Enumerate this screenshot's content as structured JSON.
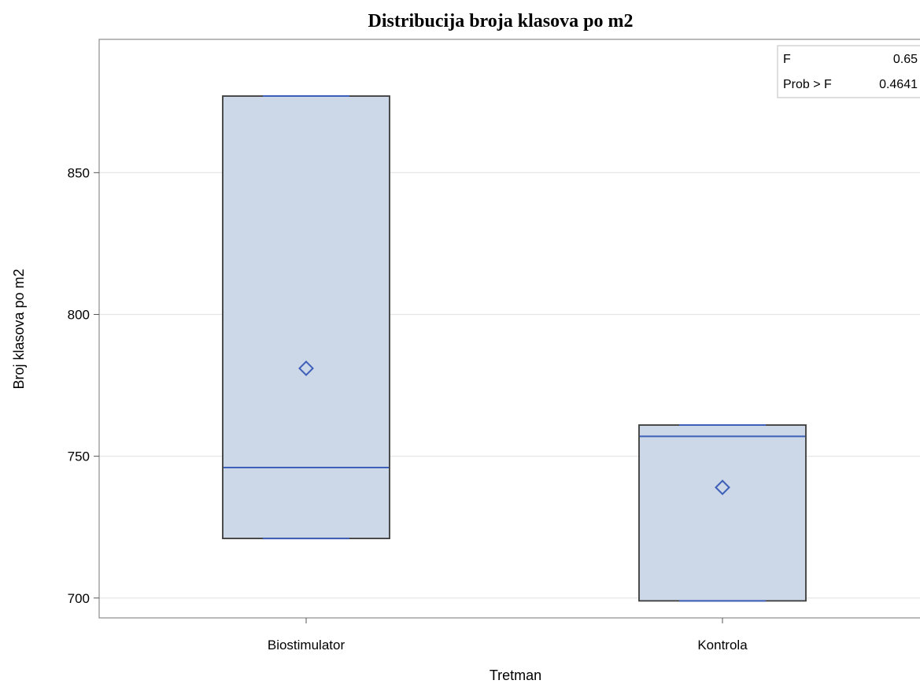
{
  "chart_data": {
    "type": "box",
    "title": "Distribucija broja  klasova po m2",
    "xlabel": "Tretman",
    "ylabel": "Broj klasova po m2",
    "ylim": [
      693,
      897
    ],
    "yticks": [
      700,
      750,
      800,
      850
    ],
    "grid": true,
    "categories": [
      "Biostimulator",
      "Kontrola"
    ],
    "boxes": [
      {
        "category": "Biostimulator",
        "min": 721,
        "q1": 721,
        "median": 746,
        "q3": 877,
        "max": 877,
        "mean": 781
      },
      {
        "category": "Kontrola",
        "min": 699,
        "q1": 699,
        "median": 757,
        "q3": 761,
        "max": 761,
        "mean": 739
      }
    ],
    "stats": [
      {
        "label": "F",
        "value": "0.65"
      },
      {
        "label": "Prob > F",
        "value": "0.4641"
      }
    ],
    "colors": {
      "box_fill": "#ccd7e8",
      "box_border": "#3a3a3a",
      "median": "#3e5fb8",
      "mean_marker": "#3e5fb8",
      "grid": "#e6e6e6",
      "frame": "#8c8c8c"
    }
  }
}
